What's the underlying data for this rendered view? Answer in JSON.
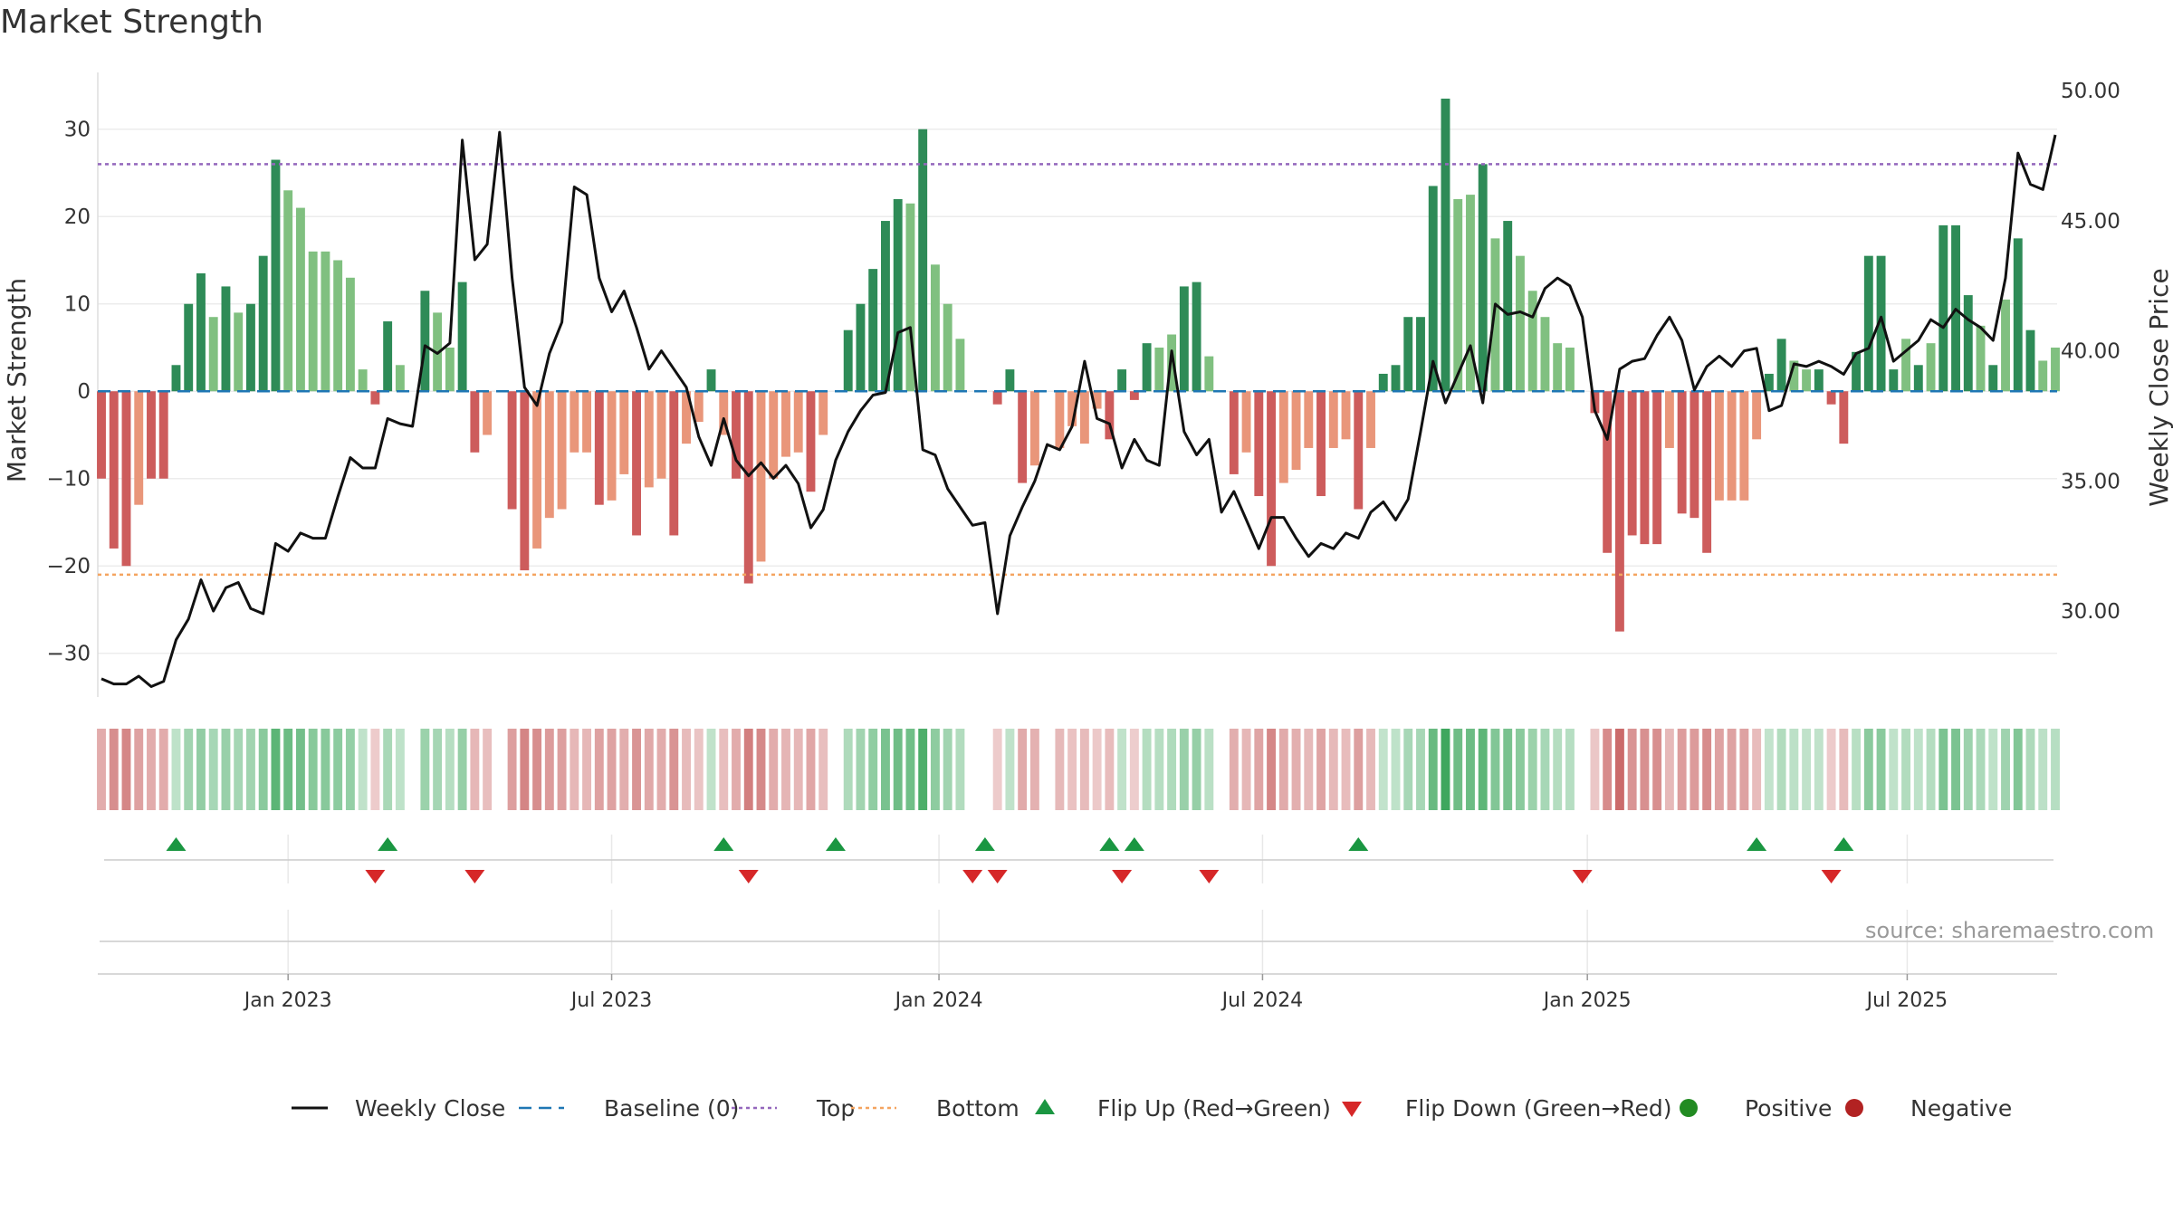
{
  "title": "Market Strength",
  "source": "source: sharemaestro.com",
  "colors": {
    "pos_dark": "#2e8b57",
    "pos_light": "#80c080",
    "neg_dark": "#cd5c5c",
    "neg_light": "#e9967a",
    "line": "#111111",
    "baseline": "#1f77b4",
    "top": "#9467bd",
    "bottom": "#f4a460",
    "flip_up": "#1a9641",
    "flip_down": "#d62728",
    "positive": "#228b22",
    "negative": "#b22222"
  },
  "chart_data": {
    "type": "bar+line",
    "title": "Market Strength",
    "ylabel_left": "Market Strength",
    "ylabel_right": "Weekly Close Price",
    "y_left_ticks": [
      30,
      20,
      10,
      0,
      -10,
      -20,
      -30
    ],
    "y_left_tick_labels": [
      "30",
      "20",
      "10",
      "0",
      "−10",
      "−20",
      "−30"
    ],
    "y_left_range": [
      -35,
      36.5
    ],
    "y_right_ticks": [
      50,
      45,
      40,
      35,
      30
    ],
    "y_right_tick_labels": [
      "50.00",
      "45.00",
      "40.00",
      "35.00",
      "30.00"
    ],
    "y_right_range": [
      26.7,
      50.7
    ],
    "x_tick_labels": [
      "Jan 2023",
      "Jul 2023",
      "Jan 2024",
      "Jul 2024",
      "Jan 2025",
      "Jul 2025"
    ],
    "x_tick_index": [
      15,
      41,
      67.3,
      93.3,
      119.4,
      145.1
    ],
    "top_level": 26,
    "bottom_level": -21,
    "strength_values": [
      -10,
      -18,
      -20,
      -13,
      -10,
      -10,
      3,
      10,
      13.5,
      8.5,
      12,
      9,
      10,
      15.5,
      26.5,
      23,
      21,
      16,
      16,
      15,
      13,
      2.5,
      -1.5,
      8,
      3,
      0,
      11.5,
      9,
      5,
      12.5,
      -7,
      -5,
      0,
      -13.5,
      -20.5,
      -18,
      -14.5,
      -13.5,
      -7,
      -7,
      -13,
      -12.5,
      -9.5,
      -16.5,
      -11,
      -10,
      -16.5,
      -6,
      -3.5,
      2.5,
      -5,
      -10,
      -22,
      -19.5,
      -10,
      -7.5,
      -7,
      -11.5,
      -5,
      0,
      7,
      10,
      14,
      19.5,
      22,
      21.5,
      30,
      14.5,
      10,
      6,
      0,
      0,
      -1.5,
      2.5,
      -10.5,
      -8.5,
      0,
      -6.5,
      -4,
      -6,
      -2,
      -5.5,
      2.5,
      -1,
      5.5,
      5,
      6.5,
      12,
      12.5,
      4,
      0,
      -9.5,
      -7,
      -12,
      -20,
      -10.5,
      -9,
      -6.5,
      -12,
      -6.5,
      -5.5,
      -13.5,
      -6.5,
      2,
      3,
      8.5,
      8.5,
      23.5,
      33.5,
      22,
      22.5,
      26,
      17.5,
      19.5,
      15.5,
      11.5,
      8.5,
      5.5,
      5,
      0,
      -2.5,
      -18.5,
      -27.5,
      -16.5,
      -17.5,
      -17.5,
      -6.5,
      -14,
      -14.5,
      -18.5,
      -12.5,
      -12.5,
      -12.5,
      -5.5,
      2,
      6,
      3.5,
      2.5,
      2.5,
      -1.5,
      -6,
      4.5,
      15.5,
      15.5,
      2.5,
      6,
      3,
      5.5,
      19,
      19,
      11,
      7.5,
      3,
      10.5,
      17.5,
      7,
      3.5,
      5
    ],
    "close_values": [
      27.4,
      27.2,
      27.2,
      27.5,
      27.1,
      27.3,
      28.9,
      29.7,
      31.2,
      30,
      30.9,
      31.1,
      30.1,
      29.9,
      32.6,
      32.3,
      33,
      32.8,
      32.8,
      34.4,
      35.9,
      35.5,
      35.5,
      37.4,
      37.2,
      37.1,
      40.2,
      39.9,
      40.3,
      48.1,
      43.5,
      44.1,
      48.4,
      42.8,
      38.6,
      37.9,
      39.9,
      41.1,
      46.3,
      46,
      42.8,
      41.5,
      42.3,
      40.9,
      39.3,
      40.0,
      39.3,
      38.6,
      36.7,
      35.6,
      37.4,
      35.8,
      35.2,
      35.7,
      35.1,
      35.6,
      34.9,
      33.2,
      33.9,
      35.8,
      36.9,
      37.7,
      38.3,
      38.4,
      40.7,
      40.9,
      36.2,
      36,
      34.7,
      34,
      33.3,
      33.4,
      29.9,
      32.9,
      34,
      35,
      36.4,
      36.2,
      37.1,
      39.6,
      37.4,
      37.2,
      35.5,
      36.6,
      35.8,
      35.6,
      40.0,
      36.9,
      36,
      36.6,
      33.8,
      34.6,
      33.5,
      32.4,
      33.6,
      33.6,
      32.8,
      32.1,
      32.6,
      32.4,
      33,
      32.8,
      33.8,
      34.2,
      33.5,
      34.3,
      36.9,
      39.6,
      38,
      39.1,
      40.2,
      38,
      41.8,
      41.4,
      41.5,
      41.3,
      42.4,
      42.8,
      42.5,
      41.3,
      37.7,
      36.6,
      39.3,
      39.6,
      39.7,
      40.6,
      41.3,
      40.4,
      38.5,
      39.4,
      39.8,
      39.4,
      40,
      40.1,
      37.7,
      37.9,
      39.5,
      39.4,
      39.6,
      39.4,
      39.1,
      39.9,
      40.1,
      41.3,
      39.6,
      40,
      40.4,
      41.2,
      40.9,
      41.6,
      41.2,
      40.9,
      40.4,
      42.8,
      47.6,
      46.4,
      46.2,
      48.3
    ],
    "bar_shade_light": [
      0,
      0,
      0,
      1,
      0,
      0,
      0,
      0,
      0,
      1,
      0,
      1,
      0,
      0,
      0,
      1,
      1,
      1,
      1,
      1,
      1,
      1,
      0,
      0,
      1,
      1,
      0,
      1,
      1,
      0,
      0,
      1,
      1,
      0,
      0,
      1,
      1,
      1,
      1,
      1,
      0,
      1,
      1,
      0,
      1,
      1,
      0,
      1,
      1,
      0,
      1,
      0,
      0,
      1,
      1,
      1,
      1,
      0,
      1,
      1,
      0,
      0,
      0,
      0,
      0,
      1,
      0,
      1,
      1,
      1,
      1,
      1,
      0,
      0,
      0,
      1,
      1,
      1,
      1,
      1,
      1,
      0,
      0,
      0,
      0,
      1,
      1,
      0,
      0,
      1,
      1,
      0,
      1,
      0,
      0,
      1,
      1,
      1,
      0,
      1,
      1,
      0,
      1,
      0,
      0,
      0,
      0,
      0,
      0,
      1,
      1,
      0,
      1,
      0,
      1,
      1,
      1,
      1,
      1,
      1,
      0,
      0,
      0,
      0,
      0,
      0,
      1,
      0,
      0,
      0,
      1,
      1,
      1,
      1,
      0,
      0,
      1,
      1,
      0,
      0,
      0,
      0,
      0,
      0,
      0,
      1,
      0,
      1,
      0,
      0,
      0,
      1,
      0,
      1,
      0,
      0,
      1,
      1,
      1,
      0,
      1,
      0
    ],
    "flip_up_index": [
      6,
      23,
      50,
      59,
      71,
      81,
      83,
      101,
      133,
      140
    ],
    "flip_down_index": [
      22,
      30,
      52,
      70,
      72,
      82,
      89,
      119,
      139
    ],
    "legend": [
      "Weekly Close",
      "Baseline (0)",
      "Top",
      "Bottom",
      "Flip Up (Red→Green)",
      "Flip Down (Green→Red)",
      "Positive",
      "Negative"
    ]
  }
}
